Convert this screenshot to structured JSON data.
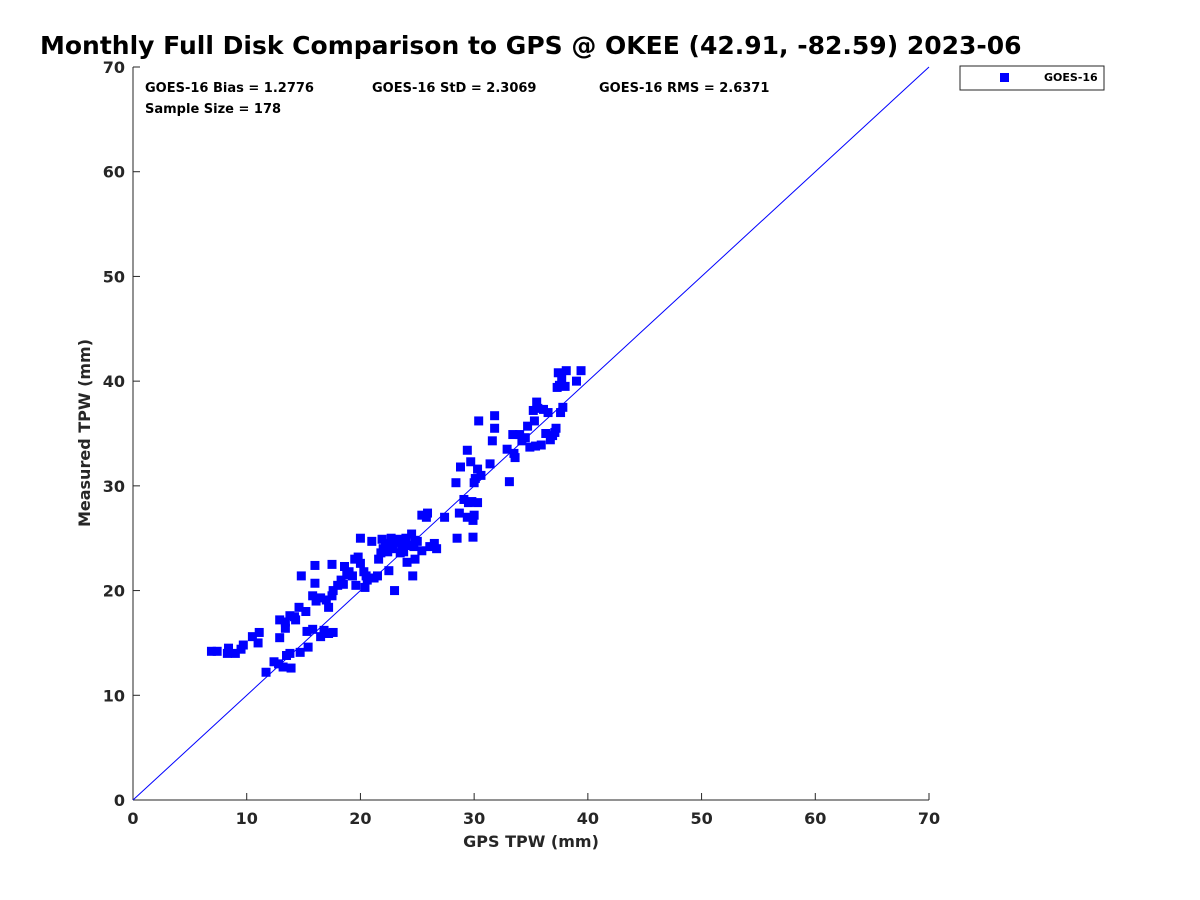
{
  "chart_data": {
    "type": "scatter",
    "title": "Monthly Full Disk Comparison to GPS @ OKEE (42.91, -82.59) 2023-06",
    "xlabel": "GPS TPW (mm)",
    "ylabel": "Measured TPW (mm)",
    "xlim": [
      0,
      70
    ],
    "ylim": [
      0,
      70
    ],
    "xticks": [
      "0",
      "10",
      "20",
      "30",
      "40",
      "50",
      "60",
      "70"
    ],
    "yticks": [
      "0",
      "10",
      "20",
      "30",
      "40",
      "50",
      "60",
      "70"
    ],
    "grid": false,
    "legend_position": "outside-top-right",
    "reference_line": {
      "from": [
        0,
        0
      ],
      "to": [
        70,
        70
      ],
      "color": "#0000ff"
    },
    "stats": {
      "bias": "GOES-16 Bias = 1.2776",
      "std": "GOES-16 StD = 2.3069",
      "rms": "GOES-16 RMS = 2.6371",
      "sample": "Sample Size = 178"
    },
    "series": [
      {
        "name": "GOES-16",
        "color": "#0000ff",
        "marker": "square",
        "points": [
          [
            6.9,
            14.2
          ],
          [
            7.4,
            14.2
          ],
          [
            8.3,
            14.0
          ],
          [
            8.4,
            14.5
          ],
          [
            9.0,
            14.0
          ],
          [
            9.5,
            14.4
          ],
          [
            9.7,
            14.8
          ],
          [
            10.5,
            15.6
          ],
          [
            11.0,
            15.0
          ],
          [
            11.1,
            16.0
          ],
          [
            11.7,
            12.2
          ],
          [
            12.4,
            13.2
          ],
          [
            12.8,
            13.0
          ],
          [
            12.9,
            15.5
          ],
          [
            12.9,
            17.2
          ],
          [
            13.2,
            12.7
          ],
          [
            13.4,
            16.4
          ],
          [
            13.4,
            17.0
          ],
          [
            13.5,
            13.8
          ],
          [
            13.8,
            14.0
          ],
          [
            13.9,
            12.6
          ],
          [
            13.8,
            17.6
          ],
          [
            14.2,
            17.5
          ],
          [
            14.3,
            17.2
          ],
          [
            14.6,
            18.4
          ],
          [
            14.7,
            14.1
          ],
          [
            14.8,
            21.4
          ],
          [
            15.2,
            18.0
          ],
          [
            15.3,
            16.1
          ],
          [
            15.4,
            14.6
          ],
          [
            15.8,
            19.5
          ],
          [
            15.8,
            16.3
          ],
          [
            16.0,
            20.7
          ],
          [
            16.0,
            22.4
          ],
          [
            16.1,
            19.0
          ],
          [
            16.5,
            19.3
          ],
          [
            16.5,
            15.6
          ],
          [
            16.8,
            16.2
          ],
          [
            16.8,
            16.0
          ],
          [
            17.0,
            19.1
          ],
          [
            17.2,
            18.4
          ],
          [
            17.2,
            15.9
          ],
          [
            17.5,
            19.5
          ],
          [
            17.5,
            22.5
          ],
          [
            17.6,
            16.0
          ],
          [
            17.6,
            20.0
          ],
          [
            18.0,
            20.5
          ],
          [
            18.3,
            21.0
          ],
          [
            18.5,
            20.6
          ],
          [
            18.6,
            22.3
          ],
          [
            18.8,
            21.5
          ],
          [
            19.0,
            21.8
          ],
          [
            19.3,
            21.4
          ],
          [
            19.5,
            23.0
          ],
          [
            19.6,
            20.5
          ],
          [
            19.8,
            23.2
          ],
          [
            20.0,
            22.6
          ],
          [
            20.0,
            25.0
          ],
          [
            20.3,
            21.8
          ],
          [
            20.4,
            20.3
          ],
          [
            20.5,
            21.4
          ],
          [
            20.6,
            21.0
          ],
          [
            21.0,
            24.7
          ],
          [
            21.2,
            21.2
          ],
          [
            21.5,
            21.4
          ],
          [
            21.6,
            23.0
          ],
          [
            21.8,
            23.6
          ],
          [
            21.9,
            24.9
          ],
          [
            22.0,
            24.0
          ],
          [
            22.2,
            24.2
          ],
          [
            22.4,
            23.7
          ],
          [
            22.5,
            21.9
          ],
          [
            22.5,
            24.5
          ],
          [
            22.7,
            25.0
          ],
          [
            22.9,
            24.0
          ],
          [
            23.0,
            20.0
          ],
          [
            23.2,
            24.6
          ],
          [
            23.3,
            24.9
          ],
          [
            23.5,
            23.6
          ],
          [
            23.7,
            24.2
          ],
          [
            23.8,
            23.7
          ],
          [
            24.0,
            25.0
          ],
          [
            24.1,
            22.7
          ],
          [
            24.2,
            24.3
          ],
          [
            24.5,
            25.4
          ],
          [
            24.6,
            21.4
          ],
          [
            24.7,
            24.2
          ],
          [
            24.8,
            23.0
          ],
          [
            24.8,
            24.8
          ],
          [
            25.0,
            24.7
          ],
          [
            25.4,
            23.8
          ],
          [
            25.4,
            27.2
          ],
          [
            25.8,
            27.0
          ],
          [
            25.9,
            27.4
          ],
          [
            26.1,
            24.2
          ],
          [
            26.5,
            24.5
          ],
          [
            26.7,
            24.0
          ],
          [
            27.4,
            27.0
          ],
          [
            28.4,
            30.3
          ],
          [
            28.5,
            25.0
          ],
          [
            28.7,
            27.4
          ],
          [
            28.8,
            31.8
          ],
          [
            29.1,
            28.7
          ],
          [
            29.4,
            27.0
          ],
          [
            29.4,
            33.4
          ],
          [
            29.5,
            28.4
          ],
          [
            29.7,
            32.3
          ],
          [
            29.8,
            28.5
          ],
          [
            29.9,
            26.7
          ],
          [
            29.9,
            25.1
          ],
          [
            30.0,
            27.2
          ],
          [
            30.0,
            30.3
          ],
          [
            30.1,
            30.7
          ],
          [
            30.3,
            28.4
          ],
          [
            30.3,
            31.6
          ],
          [
            30.4,
            36.2
          ],
          [
            30.6,
            31.0
          ],
          [
            31.4,
            32.1
          ],
          [
            31.6,
            34.3
          ],
          [
            31.8,
            35.5
          ],
          [
            31.8,
            36.7
          ],
          [
            32.9,
            33.5
          ],
          [
            33.1,
            30.4
          ],
          [
            33.4,
            34.9
          ],
          [
            33.5,
            33.1
          ],
          [
            33.6,
            32.7
          ],
          [
            34.0,
            34.9
          ],
          [
            34.2,
            34.3
          ],
          [
            34.5,
            34.6
          ],
          [
            34.7,
            35.7
          ],
          [
            34.9,
            33.7
          ],
          [
            35.2,
            37.2
          ],
          [
            35.3,
            36.2
          ],
          [
            35.4,
            33.8
          ],
          [
            35.5,
            38.0
          ],
          [
            35.6,
            37.4
          ],
          [
            35.9,
            33.9
          ],
          [
            36.1,
            37.3
          ],
          [
            36.3,
            35.0
          ],
          [
            36.5,
            37.0
          ],
          [
            36.7,
            34.4
          ],
          [
            36.9,
            34.8
          ],
          [
            37.1,
            35.1
          ],
          [
            37.2,
            35.5
          ],
          [
            37.3,
            39.4
          ],
          [
            37.4,
            40.8
          ],
          [
            37.5,
            39.6
          ],
          [
            37.6,
            37.0
          ],
          [
            37.7,
            40.2
          ],
          [
            37.8,
            37.5
          ],
          [
            38.0,
            39.5
          ],
          [
            38.1,
            41.0
          ],
          [
            39.0,
            40.0
          ],
          [
            39.4,
            41.0
          ]
        ]
      }
    ]
  }
}
